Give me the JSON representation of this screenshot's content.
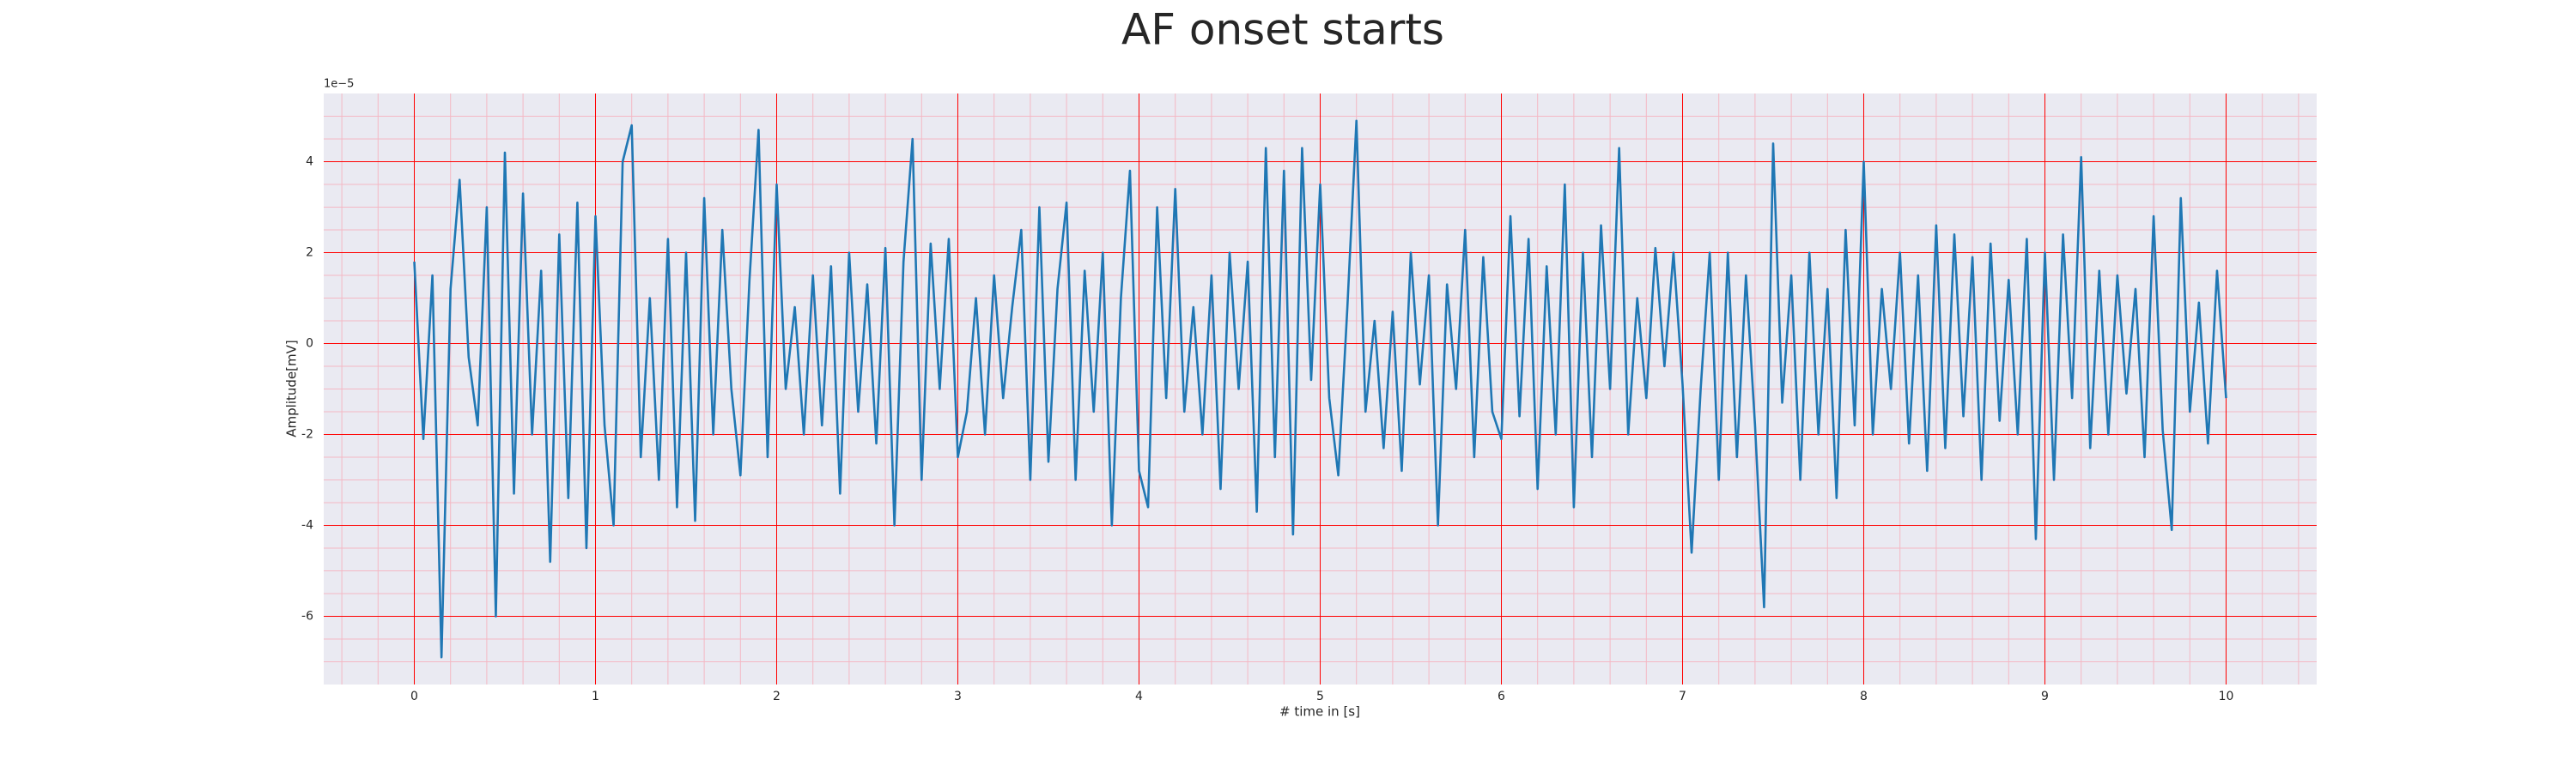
{
  "chart_data": {
    "type": "line",
    "title": "AF onset starts",
    "xlabel": "# time in [s]",
    "ylabel": "Amplitude[mV]",
    "y_offset_label": "1e−5",
    "color": "#1f77b4",
    "background": "#eaeaf2",
    "grid": true,
    "grid_color": "#ff0000",
    "minor_grid_color": "#f4b8c4",
    "xlim": [
      -0.5,
      10.5
    ],
    "ylim": [
      -7.5,
      5.5
    ],
    "xticks": [
      0,
      1,
      2,
      3,
      4,
      5,
      6,
      7,
      8,
      9,
      10
    ],
    "yticks": [
      -6,
      -4,
      -2,
      0,
      2,
      4
    ],
    "xminor_ticks": [
      -0.4,
      -0.2,
      0.2,
      0.4,
      0.6,
      0.8,
      1.2,
      1.4,
      1.6,
      1.8,
      2.2,
      2.4,
      2.6,
      2.8,
      3.2,
      3.4,
      3.6,
      3.8,
      4.2,
      4.4,
      4.6,
      4.8,
      5.2,
      5.4,
      5.6,
      5.8,
      6.2,
      6.4,
      6.6,
      6.8,
      7.2,
      7.4,
      7.6,
      7.8,
      8.2,
      8.4,
      8.6,
      8.8,
      9.2,
      9.4,
      9.6,
      9.8,
      10.2,
      10.4
    ],
    "yminor_ticks": [
      -7,
      -6.5,
      -5.5,
      -5,
      -4.5,
      -3.5,
      -3,
      -2.5,
      -1.5,
      -1,
      -0.5,
      0.5,
      1,
      1.5,
      2.5,
      3,
      3.5,
      4.5,
      5
    ],
    "x": [
      0,
      0.05,
      0.1,
      0.15,
      0.2,
      0.25,
      0.3,
      0.35,
      0.4,
      0.45,
      0.5,
      0.55,
      0.6,
      0.65,
      0.7,
      0.75,
      0.8,
      0.85,
      0.9,
      0.95,
      1,
      1.05,
      1.1,
      1.15,
      1.2,
      1.25,
      1.3,
      1.35,
      1.4,
      1.45,
      1.5,
      1.55,
      1.6,
      1.65,
      1.7,
      1.75,
      1.8,
      1.85,
      1.9,
      1.95,
      2,
      2.05,
      2.1,
      2.15,
      2.2,
      2.25,
      2.3,
      2.35,
      2.4,
      2.45,
      2.5,
      2.55,
      2.6,
      2.65,
      2.7,
      2.75,
      2.8,
      2.85,
      2.9,
      2.95,
      3,
      3.05,
      3.1,
      3.15,
      3.2,
      3.25,
      3.3,
      3.35,
      3.4,
      3.45,
      3.5,
      3.55,
      3.6,
      3.65,
      3.7,
      3.75,
      3.8,
      3.85,
      3.9,
      3.95,
      4,
      4.05,
      4.1,
      4.15,
      4.2,
      4.25,
      4.3,
      4.35,
      4.4,
      4.45,
      4.5,
      4.55,
      4.6,
      4.65,
      4.7,
      4.75,
      4.8,
      4.85,
      4.9,
      4.95,
      5,
      5.05,
      5.1,
      5.15,
      5.2,
      5.25,
      5.3,
      5.35,
      5.4,
      5.45,
      5.5,
      5.55,
      5.6,
      5.65,
      5.7,
      5.75,
      5.8,
      5.85,
      5.9,
      5.95,
      6,
      6.05,
      6.1,
      6.15,
      6.2,
      6.25,
      6.3,
      6.35,
      6.4,
      6.45,
      6.5,
      6.55,
      6.6,
      6.65,
      6.7,
      6.75,
      6.8,
      6.85,
      6.9,
      6.95,
      7,
      7.05,
      7.1,
      7.15,
      7.2,
      7.25,
      7.3,
      7.35,
      7.4,
      7.45,
      7.5,
      7.55,
      7.6,
      7.65,
      7.7,
      7.75,
      7.8,
      7.85,
      7.9,
      7.95,
      8,
      8.05,
      8.1,
      8.15,
      8.2,
      8.25,
      8.3,
      8.35,
      8.4,
      8.45,
      8.5,
      8.55,
      8.6,
      8.65,
      8.7,
      8.75,
      8.8,
      8.85,
      8.9,
      8.95,
      9,
      9.05,
      9.1,
      9.15,
      9.2,
      9.25,
      9.3,
      9.35,
      9.4,
      9.45,
      9.5,
      9.55,
      9.6,
      9.65,
      9.7,
      9.75,
      9.8,
      9.85,
      9.9,
      9.95,
      10
    ],
    "values": [
      1.8,
      -2.1,
      1.5,
      -6.9,
      1.2,
      3.6,
      -0.3,
      -1.8,
      3.0,
      -6.0,
      4.2,
      -3.3,
      3.3,
      -2.0,
      1.6,
      -4.8,
      2.4,
      -3.4,
      3.1,
      -4.5,
      2.8,
      -1.8,
      -4.0,
      4.0,
      4.8,
      -2.5,
      1.0,
      -3.0,
      2.3,
      -3.6,
      2.0,
      -3.9,
      3.2,
      -2.0,
      2.5,
      -1.0,
      -2.9,
      1.4,
      4.7,
      -2.5,
      3.5,
      -1.0,
      0.8,
      -2.0,
      1.5,
      -1.8,
      1.7,
      -3.3,
      2.0,
      -1.5,
      1.3,
      -2.2,
      2.1,
      -4.0,
      1.8,
      4.5,
      -3.0,
      2.2,
      -1.0,
      2.3,
      -2.5,
      -1.5,
      1.0,
      -2.0,
      1.5,
      -1.2,
      0.8,
      2.5,
      -3.0,
      3.0,
      -2.6,
      1.2,
      3.1,
      -3.0,
      1.6,
      -1.5,
      2.0,
      -4.0,
      1.0,
      3.8,
      -2.8,
      -3.6,
      3.0,
      -1.2,
      3.4,
      -1.5,
      0.8,
      -2.0,
      1.5,
      -3.2,
      2.0,
      -1.0,
      1.8,
      -3.7,
      4.3,
      -2.5,
      3.8,
      -4.2,
      4.3,
      -0.8,
      3.5,
      -1.2,
      -2.9,
      0.8,
      4.9,
      -1.5,
      0.5,
      -2.3,
      0.7,
      -2.8,
      2.0,
      -0.9,
      1.5,
      -4.0,
      1.3,
      -1.0,
      2.5,
      -2.5,
      1.9,
      -1.5,
      -2.1,
      2.8,
      -1.6,
      2.3,
      -3.2,
      1.7,
      -2.0,
      3.5,
      -3.6,
      2.0,
      -2.5,
      2.6,
      -1.0,
      4.3,
      -2.0,
      1.0,
      -1.2,
      2.1,
      -0.5,
      2.0,
      -0.9,
      -4.6,
      -1.0,
      2.0,
      -3.0,
      2.0,
      -2.5,
      1.5,
      -1.8,
      -5.8,
      4.4,
      -1.3,
      1.5,
      -3.0,
      2.0,
      -2.0,
      1.2,
      -3.4,
      2.5,
      -1.8,
      4.0,
      -2.0,
      1.2,
      -1.0,
      2.0,
      -2.2,
      1.5,
      -2.8,
      2.6,
      -2.3,
      2.4,
      -1.6,
      1.9,
      -3.0,
      2.2,
      -1.7,
      1.4,
      -2.0,
      2.3,
      -4.3,
      2.0,
      -3.0,
      2.4,
      -1.2,
      4.1,
      -2.3,
      1.6,
      -2.0,
      1.5,
      -1.1,
      1.2,
      -2.5,
      2.8,
      -1.9,
      -4.1,
      3.2,
      -1.5,
      0.9,
      -2.2,
      1.6,
      -1.2
    ]
  }
}
